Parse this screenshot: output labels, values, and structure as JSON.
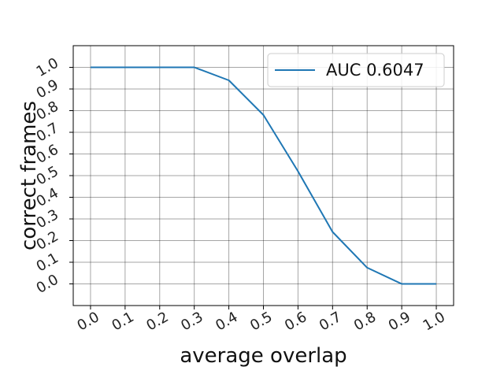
{
  "chart_data": {
    "type": "line",
    "xlabel": "average overlap",
    "ylabel": "correct frames",
    "x_ticks": [
      "0.0",
      "0.1",
      "0.2",
      "0.3",
      "0.4",
      "0.5",
      "0.6",
      "0.7",
      "0.8",
      "0.9",
      "1.0"
    ],
    "y_ticks": [
      "0.0",
      "0.1",
      "0.2",
      "0.3",
      "0.4",
      "0.5",
      "0.6",
      "0.7",
      "0.8",
      "0.9",
      "1.0"
    ],
    "xlim": [
      -0.05,
      1.05
    ],
    "ylim": [
      -0.1,
      1.1
    ],
    "grid": true,
    "legend_position": "top-right",
    "series": [
      {
        "name": "AUC 0.6047",
        "color": "#1f77b4",
        "x": [
          0.0,
          0.1,
          0.2,
          0.3,
          0.4,
          0.5,
          0.6,
          0.7,
          0.8,
          0.9,
          1.0
        ],
        "y": [
          1.0,
          1.0,
          1.0,
          1.0,
          0.94,
          0.78,
          0.52,
          0.24,
          0.075,
          0.0,
          0.0
        ]
      }
    ]
  }
}
